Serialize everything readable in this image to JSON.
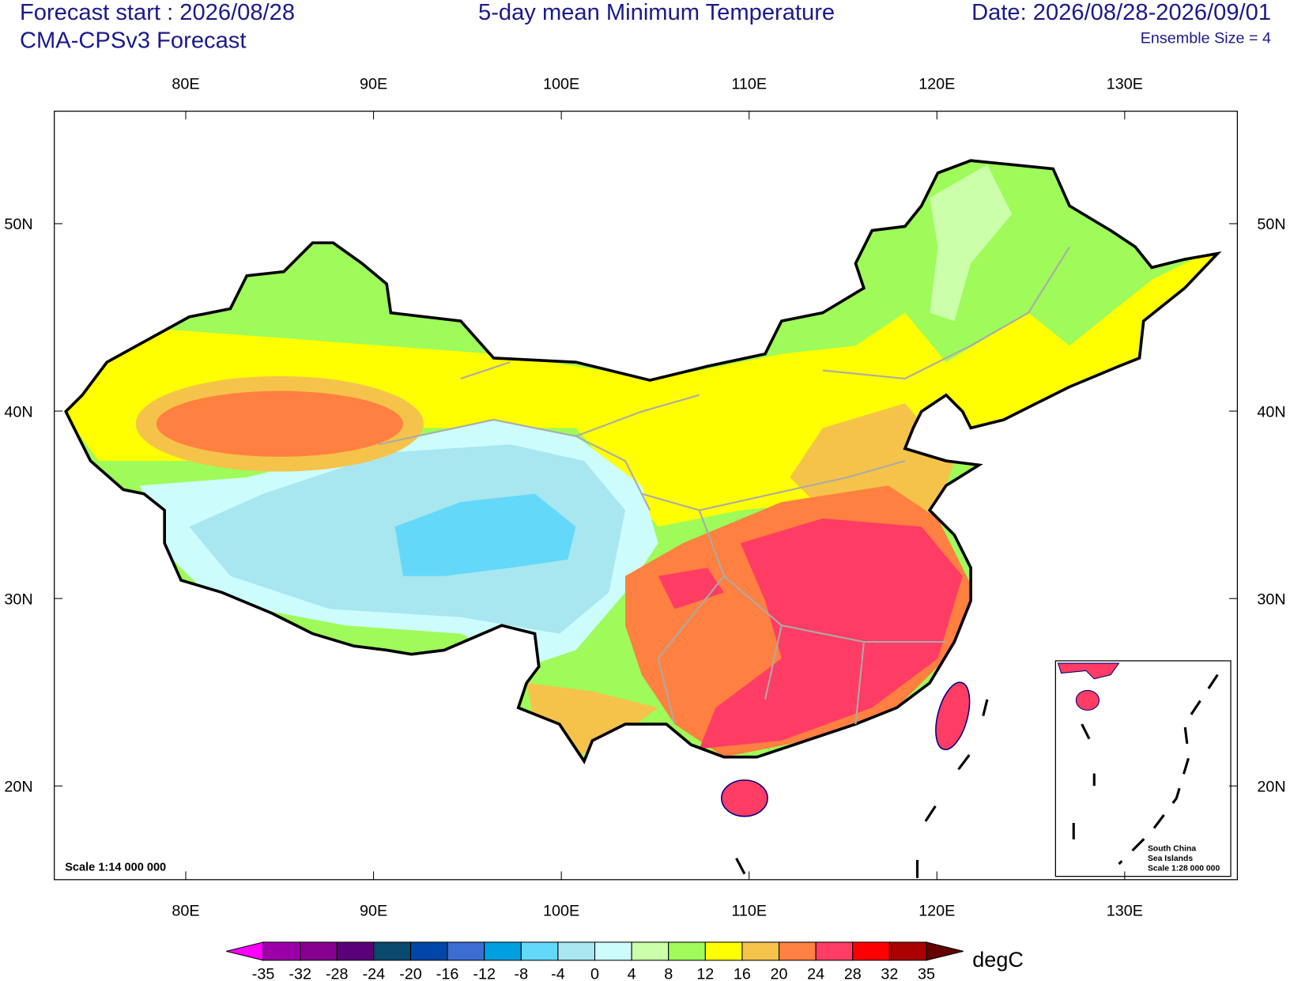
{
  "header": {
    "forecast_start": "Forecast start : 2026/08/28",
    "model": "CMA-CPSv3 Forecast",
    "title": "5-day mean Minimum Temperature",
    "date": "Date: 2026/08/28-2026/09/01",
    "ensemble": "Ensemble Size = 4"
  },
  "map": {
    "lon_lim": [
      73,
      136
    ],
    "lat_lim": [
      15,
      56
    ],
    "lon_ticks": [
      {
        "value": 80,
        "label": "80E"
      },
      {
        "value": 90,
        "label": "90E"
      },
      {
        "value": 100,
        "label": "100E"
      },
      {
        "value": 110,
        "label": "110E"
      },
      {
        "value": 120,
        "label": "120E"
      },
      {
        "value": 130,
        "label": "130E"
      }
    ],
    "lat_ticks": [
      {
        "value": 20,
        "label": "20N"
      },
      {
        "value": 30,
        "label": "30N"
      },
      {
        "value": 40,
        "label": "40N"
      },
      {
        "value": 50,
        "label": "50N"
      }
    ],
    "scale": "Scale 1:14 000 000",
    "inset_labels": [
      "South China",
      "Sea Islands",
      "Scale 1:28 000 000"
    ]
  },
  "colorbar": {
    "levels": [
      -35,
      -32,
      -28,
      -24,
      -20,
      -16,
      -12,
      -8,
      -4,
      0,
      4,
      8,
      12,
      16,
      20,
      24,
      28,
      32,
      35
    ],
    "colors": [
      "#ff00ff",
      "#9b00a8",
      "#870090",
      "#5a0078",
      "#0a4a6e",
      "#0046a8",
      "#3c6ed2",
      "#00a0e0",
      "#64d8f8",
      "#a8e6f0",
      "#ccfcfc",
      "#ccffaa",
      "#9efb5a",
      "#ffff00",
      "#f5c34a",
      "#ff8040",
      "#ff3c64",
      "#ff0000",
      "#aa0000",
      "#640000"
    ],
    "unit": "degC"
  }
}
